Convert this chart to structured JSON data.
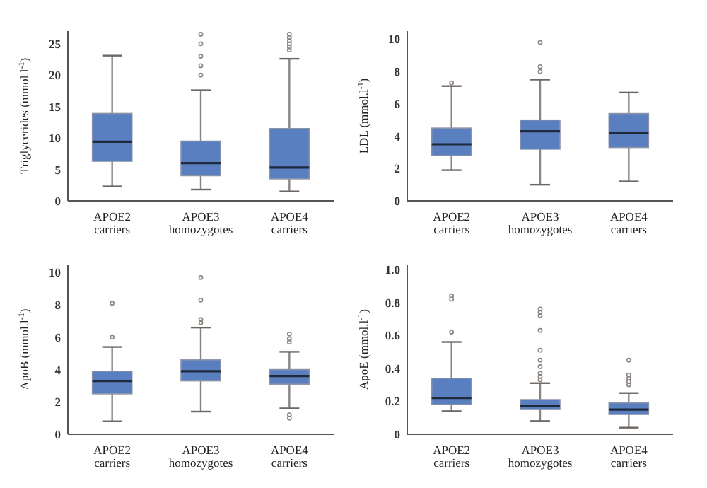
{
  "chart_data": [
    {
      "type": "box",
      "ylabel": "Triglycerides (mmol.l$^{-1}$)",
      "categories": [
        "APOE2\ncarriers",
        "APOE3\nhomozygotes",
        "APOE4\ncarriers"
      ],
      "color": "#5a7fc0",
      "marker": "circle",
      "ylim": [
        0,
        27
      ],
      "yticks": [
        0,
        5,
        10,
        15,
        20,
        25
      ],
      "grid": false,
      "boxes": [
        {
          "low": 2.3,
          "q1": 6.3,
          "median": 9.4,
          "q3": 13.9,
          "high": 23.1
        },
        {
          "low": 1.8,
          "q1": 4.0,
          "median": 6.0,
          "q3": 9.5,
          "high": 17.6,
          "outliers": [
            20,
            21.5,
            23,
            25,
            26.5
          ]
        },
        {
          "low": 1.5,
          "q1": 3.5,
          "median": 5.3,
          "q3": 11.5,
          "high": 22.6,
          "outliers": [
            24,
            24.5,
            25,
            25.5,
            26,
            26.5
          ]
        }
      ]
    },
    {
      "type": "box",
      "ylabel": "LDL (mmol.l$^{-1}$)",
      "categories": [
        "APOE2\ncarriers",
        "APOE3\nhomozygotes",
        "APOE4\ncarriers"
      ],
      "color": "#5a7fc0",
      "marker": "circle",
      "ylim": [
        0,
        10.5
      ],
      "yticks": [
        0,
        2,
        4,
        6,
        8,
        10
      ],
      "grid": false,
      "boxes": [
        {
          "low": 1.9,
          "q1": 2.8,
          "median": 3.5,
          "q3": 4.5,
          "high": 7.1,
          "outliers": [
            7.3
          ]
        },
        {
          "low": 1.0,
          "q1": 3.2,
          "median": 4.3,
          "q3": 5.0,
          "high": 7.5,
          "outliers": [
            8.0,
            8.3,
            9.8
          ]
        },
        {
          "low": 1.2,
          "q1": 3.3,
          "median": 4.2,
          "q3": 5.4,
          "high": 6.7
        }
      ]
    },
    {
      "type": "box",
      "ylabel": "ApoB (mmol.l$^{-1}$)",
      "categories": [
        "APOE2\ncarriers",
        "APOE3\nhomozygotes",
        "APOE4\ncarriers"
      ],
      "color": "#5a7fc0",
      "marker": "circle",
      "ylim": [
        0,
        10.5
      ],
      "yticks": [
        0,
        2,
        4,
        6,
        8,
        10
      ],
      "grid": false,
      "boxes": [
        {
          "low": 0.8,
          "q1": 2.5,
          "median": 3.3,
          "q3": 3.9,
          "high": 5.4,
          "outliers": [
            6.0,
            8.1
          ]
        },
        {
          "low": 1.4,
          "q1": 3.3,
          "median": 3.9,
          "q3": 4.6,
          "high": 6.6,
          "outliers": [
            6.9,
            7.1,
            8.3,
            9.7
          ]
        },
        {
          "low": 1.6,
          "q1": 3.1,
          "median": 3.6,
          "q3": 4.0,
          "high": 5.1,
          "outliers": [
            1.0,
            1.2,
            5.7,
            5.9,
            6.2
          ]
        }
      ]
    },
    {
      "type": "box",
      "ylabel": "ApoE (mmol.l$^{-1}$)",
      "categories": [
        "APOE2\ncarriers",
        "APOE3\nhomozygotes",
        "APOE4\ncarriers"
      ],
      "color": "#5a7fc0",
      "marker": "circle",
      "ylim": [
        0,
        1.03
      ],
      "yticks": [
        0,
        0.2,
        0.4,
        0.6,
        0.8,
        {
          "value": 1,
          "label": "1.0"
        }
      ],
      "grid": false,
      "boxes": [
        {
          "low": 0.14,
          "q1": 0.18,
          "median": 0.22,
          "q3": 0.34,
          "high": 0.56,
          "outliers": [
            0.62,
            0.82,
            0.84
          ]
        },
        {
          "low": 0.08,
          "q1": 0.15,
          "median": 0.17,
          "q3": 0.21,
          "high": 0.31,
          "outliers": [
            0.33,
            0.35,
            0.37,
            0.41,
            0.45,
            0.51,
            0.63,
            0.72,
            0.74,
            0.76
          ]
        },
        {
          "low": 0.04,
          "q1": 0.12,
          "median": 0.15,
          "q3": 0.19,
          "high": 0.25,
          "outliers": [
            0.3,
            0.32,
            0.34,
            0.36,
            0.45
          ]
        }
      ]
    }
  ]
}
